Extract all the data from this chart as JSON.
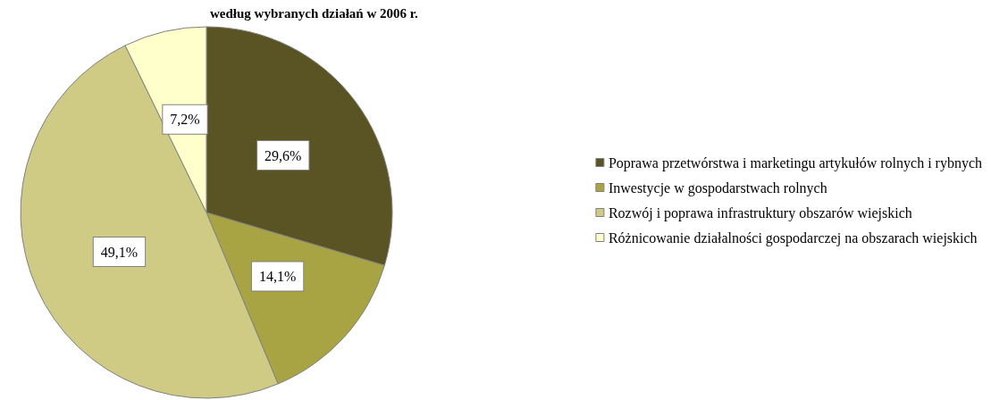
{
  "chart_data": {
    "type": "pie",
    "title": "według wybranych działań w 2006 r.",
    "categories": [
      "Poprawa przetwórstwa i marketingu artykułów rolnych i rybnych",
      "Inwestycje w gospodarstwach rolnych",
      "Rozwój i poprawa infrastruktury obszarów wiejskich",
      "Różnicowanie działalności gospodarczej na obszarach wiejskich"
    ],
    "values": [
      29.6,
      14.1,
      49.1,
      7.2
    ],
    "value_labels": [
      "29,6%",
      "14,1%",
      "49,1%",
      "7,2%"
    ],
    "colors": [
      "#5a5424",
      "#a8a444",
      "#cfcb84",
      "#ffffcc"
    ],
    "legend": "right"
  }
}
